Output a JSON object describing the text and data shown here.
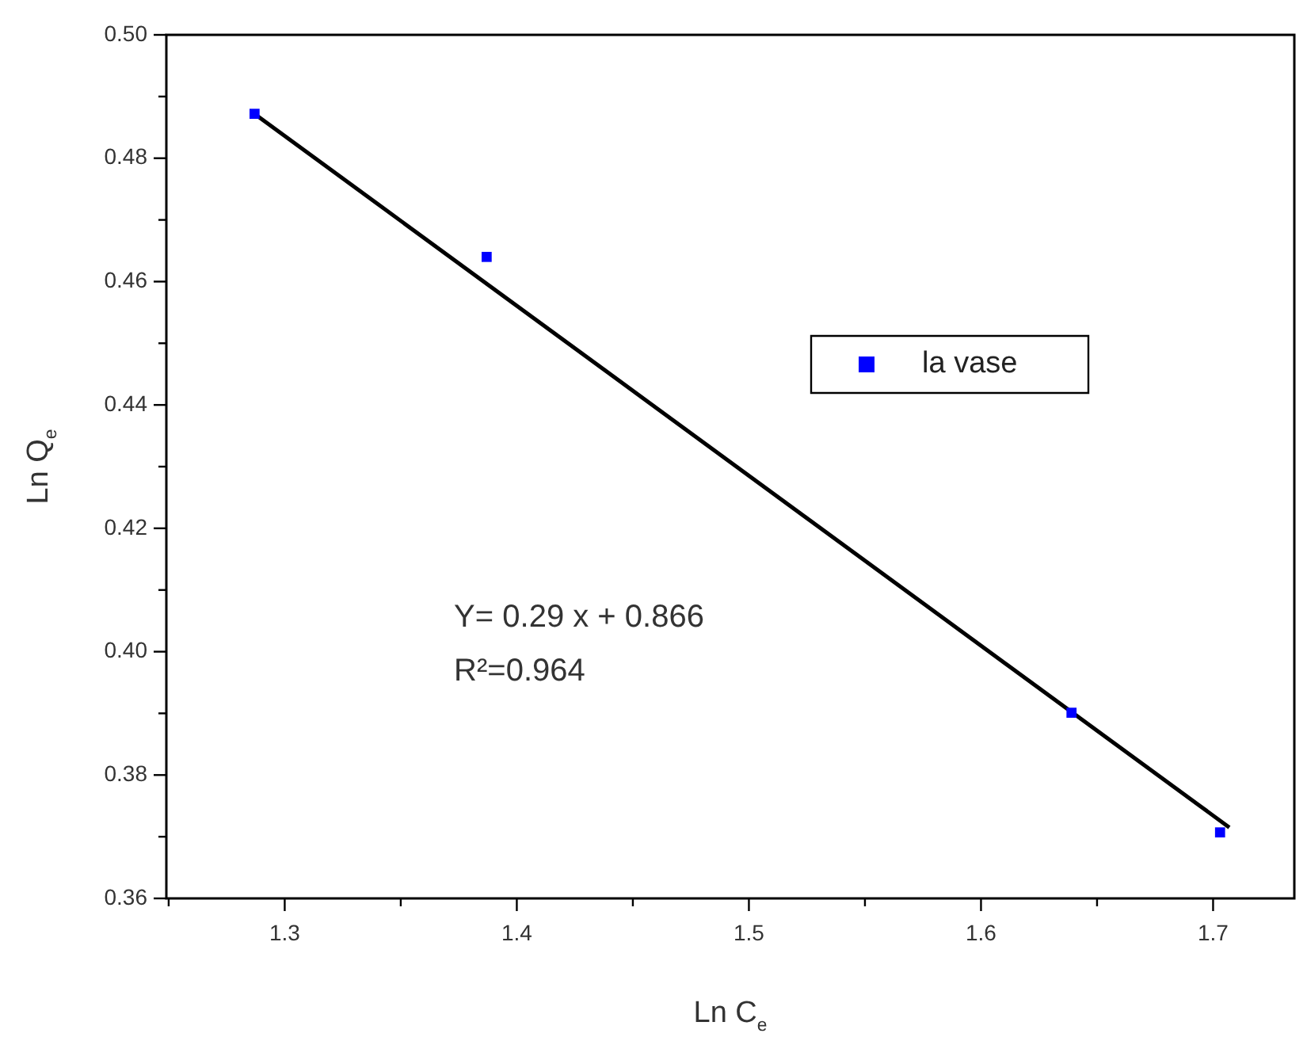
{
  "chart_data": {
    "type": "scatter",
    "xlabel": "Ln C$_{e}$",
    "ylabel": "Ln Q$_{e}$",
    "series": [
      {
        "name": "la vase",
        "color": "#0000ff",
        "x": [
          1.287,
          1.387,
          1.639,
          1.703
        ],
        "values": [
          0.4872,
          0.464,
          0.3901,
          0.3707
        ]
      },
      {
        "type": "line",
        "color": "#000000",
        "marker": "none",
        "x": [
          1.287,
          1.707
        ],
        "values": [
          0.4872,
          0.3715
        ]
      }
    ],
    "xlim": [
      1.249,
      1.735
    ],
    "xticks": [
      {
        "value": 1.25,
        "label": null
      },
      1.3,
      {
        "value": 1.35,
        "label": null
      },
      1.4,
      {
        "value": 1.45,
        "label": null
      },
      1.5,
      {
        "value": 1.55,
        "label": null
      },
      1.6,
      {
        "value": 1.65,
        "label": null
      },
      1.7
    ],
    "ylim": [
      0.36,
      0.5
    ],
    "yticks": [
      {
        "value": 0.36,
        "label": "0.36"
      },
      {
        "value": 0.37,
        "label": null
      },
      {
        "value": 0.38,
        "label": "0.38"
      },
      {
        "value": 0.39,
        "label": null
      },
      {
        "value": 0.4,
        "label": "0.40"
      },
      {
        "value": 0.41,
        "label": null
      },
      {
        "value": 0.42,
        "label": "0.42"
      },
      {
        "value": 0.43,
        "label": null
      },
      {
        "value": 0.44,
        "label": "0.44"
      },
      {
        "value": 0.45,
        "label": null
      },
      {
        "value": 0.46,
        "label": "0.46"
      },
      {
        "value": 0.47,
        "label": null
      },
      {
        "value": 0.48,
        "label": "0.48"
      },
      {
        "value": 0.49,
        "label": null
      },
      {
        "value": 0.5,
        "label": "0.50"
      }
    ],
    "annotations": [
      "Y= 0.29 x + 0.866",
      "R²=0.964"
    ],
    "legend": "right",
    "marker": "square",
    "grid": false
  }
}
